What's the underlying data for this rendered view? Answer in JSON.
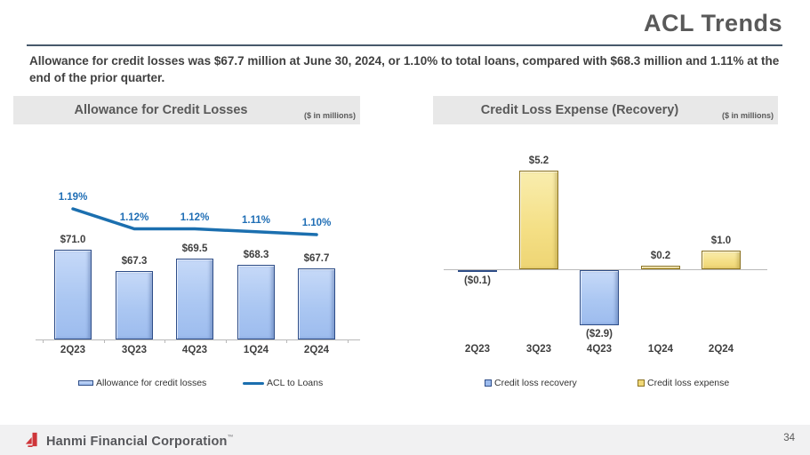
{
  "slide": {
    "title": "ACL Trends",
    "subtitle": "Allowance for credit losses was $67.7 million at June 30, 2024, or 1.10% to total loans, compared with $68.3 million and 1.11% at the end of the prior quarter.",
    "page_number": "34",
    "footer": {
      "company": "Hanmi Financial Corporation",
      "trademark": "™"
    }
  },
  "colors": {
    "accent_line_blue": "#1b6faf",
    "pct_label_blue": "#1f6eb5",
    "bar_blue_fill": "#abc7f2",
    "bar_blue_border": "#2e4d88",
    "bar_yellow_fill": "#f4df85",
    "bar_yellow_border": "#8c7322",
    "heading_gray": "#595959",
    "divider_slate": "#47596b",
    "logo_red": "#ce3539"
  },
  "chart_data": [
    {
      "type": "bar+line",
      "title": "Allowance for Credit Losses",
      "units_note": "($ in millions)",
      "categories": [
        "2Q23",
        "3Q23",
        "4Q23",
        "1Q24",
        "2Q24"
      ],
      "series": [
        {
          "name": "Allowance for credit losses",
          "type": "bar",
          "values": [
            71.0,
            67.3,
            69.5,
            68.3,
            67.7
          ],
          "labels": [
            "$71.0",
            "$67.3",
            "$69.5",
            "$68.3",
            "$67.7"
          ]
        },
        {
          "name": "ACL to Loans",
          "type": "line",
          "values": [
            1.19,
            1.12,
            1.12,
            1.11,
            1.1
          ],
          "labels": [
            "1.19%",
            "1.12%",
            "1.12%",
            "1.11%",
            "1.10%"
          ]
        }
      ],
      "legend": [
        "Allowance for credit losses",
        "ACL to Loans"
      ],
      "axes": {
        "bar_ylim": [
          55,
          75
        ],
        "line_ylim": [
          1.05,
          1.25
        ],
        "grid": false,
        "legend_position": "bottom"
      }
    },
    {
      "type": "bar",
      "title": "Credit Loss Expense (Recovery)",
      "units_note": "($ in millions)",
      "categories": [
        "2Q23",
        "3Q23",
        "4Q23",
        "1Q24",
        "2Q24"
      ],
      "values": [
        -0.1,
        5.2,
        -2.9,
        0.2,
        1.0
      ],
      "labels": [
        "($0.1)",
        "$5.2",
        "($2.9)",
        "$0.2",
        "$1.0"
      ],
      "series_coloring": {
        "negative": "Credit loss recovery",
        "positive": "Credit loss expense"
      },
      "legend": [
        "Credit loss recovery",
        "Credit loss expense"
      ],
      "axes": {
        "ylim": [
          -4,
          6
        ],
        "zero_line": true,
        "grid": false,
        "legend_position": "bottom"
      }
    }
  ]
}
